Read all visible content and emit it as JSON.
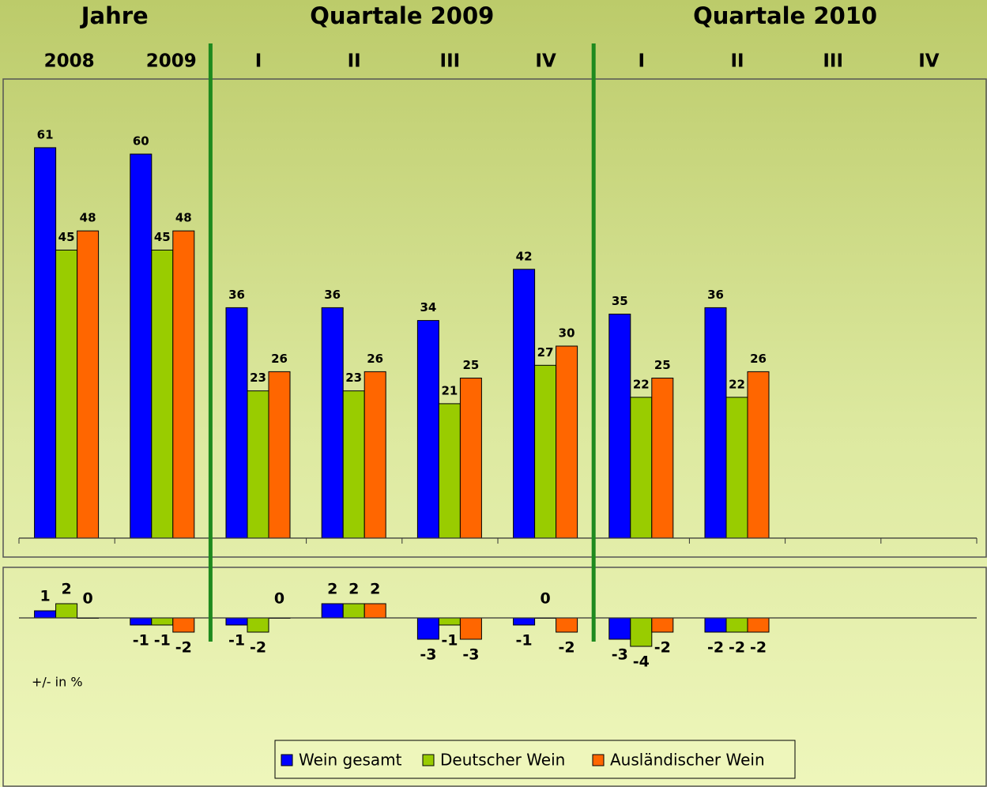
{
  "chart_data": [
    {
      "type": "bar",
      "group_labels": [
        "Jahre",
        "Quartale 2009",
        "Quartale 2010"
      ],
      "categories": [
        "2008",
        "2009",
        "I",
        "II",
        "III",
        "IV",
        "I",
        "II",
        "III",
        "IV"
      ],
      "series": [
        {
          "name": "Wein gesamt",
          "color": "#0000ff",
          "values": [
            61,
            60,
            36,
            36,
            34,
            42,
            35,
            36,
            null,
            null
          ]
        },
        {
          "name": "Deutscher Wein",
          "color": "#99cc00",
          "values": [
            45,
            45,
            23,
            23,
            21,
            27,
            22,
            22,
            null,
            null
          ]
        },
        {
          "name": "Ausländischer Wein",
          "color": "#ff6600",
          "values": [
            48,
            48,
            26,
            26,
            25,
            30,
            25,
            26,
            null,
            null
          ]
        }
      ],
      "ylim": [
        0,
        70
      ],
      "legend": "bottom"
    },
    {
      "type": "bar",
      "annotation": "+/- in %",
      "series": [
        {
          "color": "#0000ff",
          "values": [
            1,
            -1,
            -1,
            2,
            -3,
            -1,
            -3,
            -2,
            null,
            null
          ]
        },
        {
          "color": "#99cc00",
          "values": [
            2,
            -1,
            -2,
            2,
            -1,
            0,
            -4,
            -2,
            null,
            null
          ]
        },
        {
          "color": "#ff6600",
          "values": [
            0,
            -2,
            0,
            2,
            -3,
            -2,
            -2,
            -2,
            null,
            null
          ]
        }
      ],
      "ylim": [
        -5,
        5
      ]
    }
  ]
}
